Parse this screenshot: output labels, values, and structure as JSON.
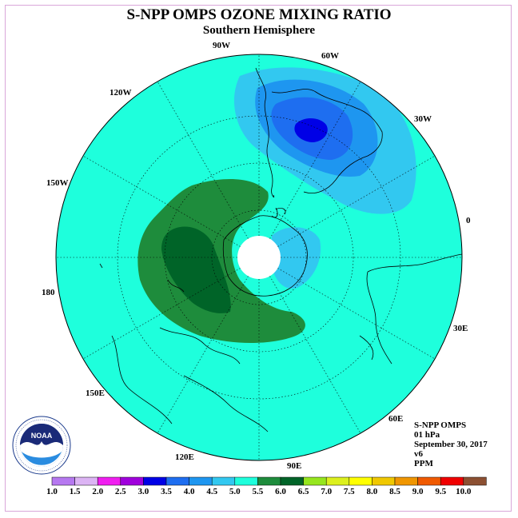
{
  "title": "S-NPP OMPS OZONE MIXING RATIO",
  "subtitle": "Southern Hemisphere",
  "longitude_labels": {
    "w90": "90W",
    "w60": "60W",
    "w30": "30W",
    "e0": "0",
    "e30": "30E",
    "e60": "60E",
    "e90": "90E",
    "e120": "120E",
    "e150": "150E",
    "d180": "180",
    "w150": "150W",
    "w120": "120W"
  },
  "info": {
    "instrument": "S-NPP OMPS",
    "level": "01 hPa",
    "date": "September 30, 2017",
    "version": "v6",
    "units": "PPM"
  },
  "logo": {
    "text": "NOAA",
    "ring_text": "NATIONAL OCEANIC AND ATMOSPHERIC ADMINISTRATION · U.S. DEPARTMENT OF COMMERCE"
  },
  "colorbar": {
    "labels": [
      "1.0",
      "1.5",
      "2.0",
      "2.5",
      "3.0",
      "3.5",
      "4.0",
      "4.5",
      "5.0",
      "5.5",
      "6.0",
      "6.5",
      "7.0",
      "7.5",
      "8.0",
      "8.5",
      "9.0",
      "9.5",
      "10.0"
    ],
    "colors": [
      "#b678f0",
      "#dcb4f4",
      "#f01ef0",
      "#a000dc",
      "#0000e6",
      "#1e6ef0",
      "#1e96f0",
      "#32c8f0",
      "#1effdc",
      "#1e8c3c",
      "#006428",
      "#96e61e",
      "#dcf01e",
      "#ffff00",
      "#f0c800",
      "#f09600",
      "#f05a00",
      "#f00000",
      "#8c5032"
    ]
  },
  "field": {
    "background_level": "4.5-5.0",
    "background_color": "#1effdc",
    "low_region_levels": [
      "4.0-4.5",
      "3.5-4.0",
      "3.0-3.5",
      "2.5-3.0"
    ],
    "high_region_levels": [
      "5.5-6.0",
      "6.0-6.5"
    ]
  }
}
